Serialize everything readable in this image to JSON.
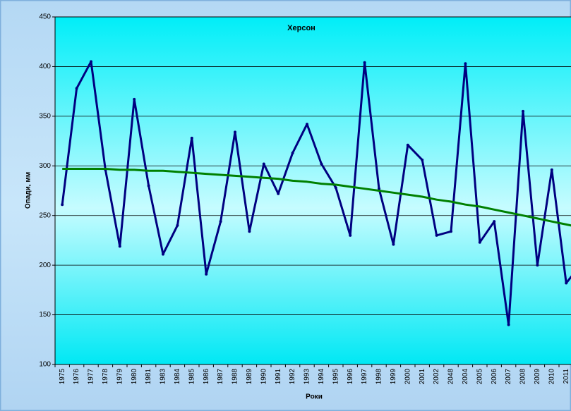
{
  "chart_data": {
    "type": "line",
    "title": "Херсон",
    "x_label": "Роки",
    "y_label": "Опади, мм",
    "categories": [
      "1975",
      "1976",
      "1977",
      "1978",
      "1979",
      "1980",
      "1981",
      "1983",
      "1984",
      "1985",
      "1986",
      "1987",
      "1988",
      "1989",
      "1990",
      "1991",
      "1992",
      "1993",
      "1994",
      "1995",
      "1996",
      "1997",
      "1998",
      "1999",
      "2000",
      "2001",
      "2002",
      "2048",
      "2004",
      "2005",
      "2006",
      "2007",
      "2008",
      "2009",
      "2010",
      "2011",
      null
    ],
    "series": [
      {
        "color": "#000080",
        "values": [
          261,
          378,
          405,
          296,
          219,
          367,
          280,
          211,
          240,
          328,
          191,
          244,
          334,
          234,
          302,
          272,
          313,
          342,
          302,
          278,
          230,
          404,
          277,
          221,
          321,
          306,
          230,
          234,
          403,
          223,
          244,
          140,
          355,
          200,
          296,
          182,
          200
        ]
      },
      {
        "color": "#008000",
        "values": [
          297,
          297,
          297,
          297,
          296,
          296,
          295,
          295,
          294,
          293,
          292,
          291,
          290,
          289,
          288,
          287,
          285,
          284,
          282,
          281,
          279,
          277,
          275,
          273,
          271,
          269,
          266,
          264,
          261,
          259,
          256,
          253,
          250,
          247,
          244,
          241,
          238
        ]
      }
    ],
    "ylim": [
      100,
      450
    ],
    "yticks": [
      100,
      150,
      200,
      250,
      300,
      350,
      400,
      450
    ],
    "grid": true
  }
}
